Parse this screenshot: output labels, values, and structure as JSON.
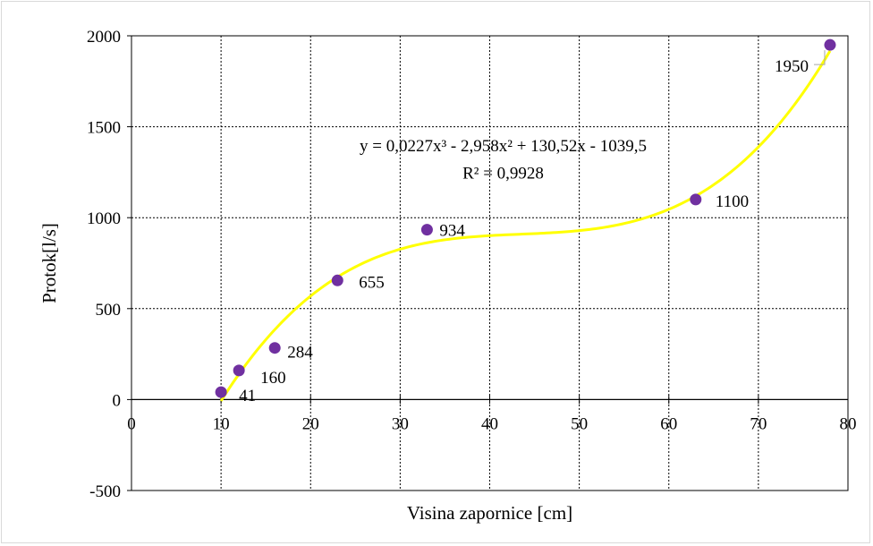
{
  "chart_data": {
    "type": "scatter",
    "title": "",
    "xlabel": "Visina zapornice [cm]",
    "ylabel": "Protok[l/s]",
    "xlim": [
      0,
      80
    ],
    "ylim": [
      -500,
      2000
    ],
    "x_ticks": [
      "0",
      "10",
      "20",
      "30",
      "40",
      "50",
      "60",
      "70",
      "80"
    ],
    "y_ticks": [
      "-500",
      "0",
      "500",
      "1000",
      "1500",
      "2000"
    ],
    "grid": true,
    "legend": "none",
    "series": [
      {
        "x": [
          10,
          12,
          16,
          23,
          33,
          63,
          78
        ],
        "y": [
          41,
          160,
          284,
          655,
          934,
          1100,
          1950
        ],
        "data_labels": [
          "41",
          "160",
          "284",
          "655",
          "934",
          "1100",
          "1950"
        ],
        "color": "#7030a0"
      }
    ],
    "trendline": {
      "type": "polynomial",
      "order": 3,
      "coefficients": [
        0.0227,
        -2.958,
        130.52,
        -1039.5
      ],
      "x_range": [
        10,
        78
      ],
      "color": "#ffff00",
      "equation_label": "y = 0,0227x³ - 2,958x² + 130,52x - 1039,5",
      "r2_label": "R² = 0,9928"
    }
  }
}
